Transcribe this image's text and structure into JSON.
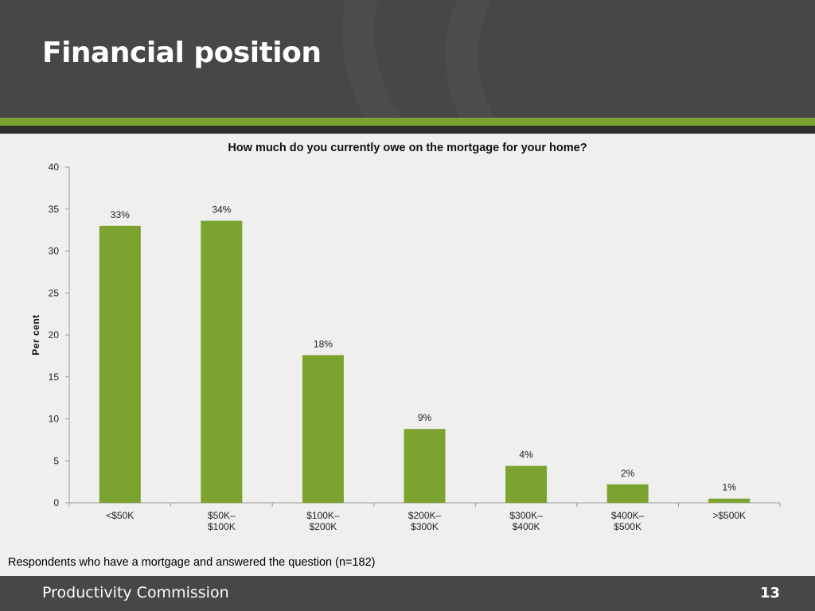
{
  "slide": {
    "title": "Financial position",
    "footnote": "Respondents who have a mortgage and answered the question (n=182)",
    "footer_org": "Productivity Commission",
    "page_number": "13"
  },
  "colors": {
    "bar": "#7ca22f",
    "header": "#474747",
    "accent": "#7ca22f"
  },
  "chart_data": {
    "type": "bar",
    "title": "How much do you currently owe on the mortgage for your home?",
    "ylabel": "Per cent",
    "xlabel": "",
    "ylim": [
      0,
      40
    ],
    "yticks": [
      0,
      5,
      10,
      15,
      20,
      25,
      30,
      35,
      40
    ],
    "grid": false,
    "legend": "none",
    "categories": [
      [
        "<$50K"
      ],
      [
        "$50K–",
        "$100K"
      ],
      [
        "$100K–",
        "$200K"
      ],
      [
        "$200K–",
        "$300K"
      ],
      [
        "$300K–",
        "$400K"
      ],
      [
        "$400K–",
        "$500K"
      ],
      [
        ">$500K"
      ]
    ],
    "values": [
      33,
      33.6,
      17.6,
      8.8,
      4.4,
      2.2,
      0.5
    ],
    "data_labels": [
      "33%",
      "34%",
      "18%",
      "9%",
      "4%",
      "2%",
      "1%"
    ]
  }
}
